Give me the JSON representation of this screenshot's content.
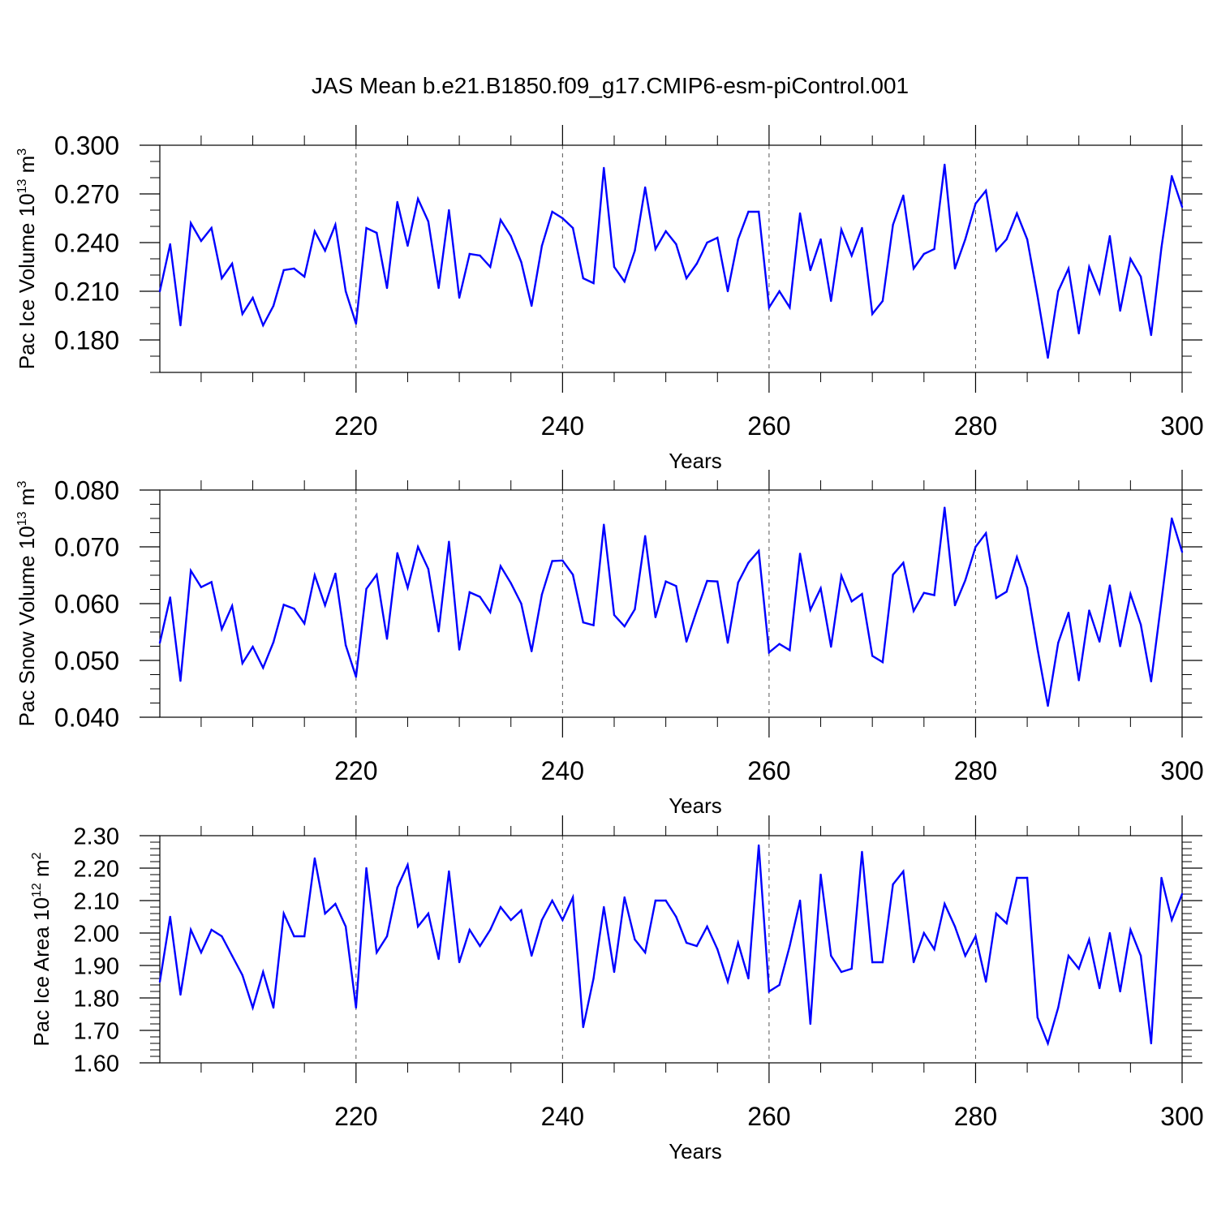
{
  "title": "JAS Mean b.e21.B1850.f09_g17.CMIP6-esm-piControl.001",
  "colors": {
    "line": "#0000ff",
    "axis": "#000000",
    "grid": "#555555",
    "background": "#ffffff"
  },
  "chart_data": [
    {
      "type": "line",
      "ylabel": "Pac Ice Volume",
      "ylabel_unit": "10",
      "ylabel_exp": "13",
      "ylabel_unit2": " m",
      "ylabel_exp2": "3",
      "xlabel": "Years",
      "xlim": [
        201,
        300
      ],
      "ylim": [
        0.16,
        0.3
      ],
      "xticks": [
        220,
        240,
        260,
        280,
        300
      ],
      "xtick_labels": [
        "220",
        "240",
        "260",
        "280",
        "300"
      ],
      "yticks": [
        0.18,
        0.21,
        0.24,
        0.27,
        0.3
      ],
      "ytick_labels": [
        "0.180",
        "0.210",
        "0.240",
        "0.270",
        "0.300"
      ],
      "yminor_step": 0.01,
      "grid_x": [
        220,
        240,
        260,
        280
      ],
      "x_start": 201,
      "values": [
        0.21,
        0.239,
        0.189,
        0.252,
        0.241,
        0.249,
        0.218,
        0.227,
        0.196,
        0.206,
        0.189,
        0.201,
        0.223,
        0.224,
        0.219,
        0.247,
        0.235,
        0.251,
        0.21,
        0.19,
        0.249,
        0.246,
        0.212,
        0.265,
        0.238,
        0.267,
        0.253,
        0.212,
        0.26,
        0.206,
        0.233,
        0.232,
        0.225,
        0.254,
        0.244,
        0.228,
        0.201,
        0.238,
        0.259,
        0.255,
        0.249,
        0.218,
        0.215,
        0.286,
        0.225,
        0.216,
        0.235,
        0.274,
        0.236,
        0.247,
        0.239,
        0.218,
        0.227,
        0.24,
        0.243,
        0.21,
        0.242,
        0.259,
        0.259,
        0.2,
        0.21,
        0.2,
        0.258,
        0.223,
        0.242,
        0.204,
        0.248,
        0.232,
        0.249,
        0.196,
        0.204,
        0.251,
        0.269,
        0.224,
        0.233,
        0.236,
        0.288,
        0.224,
        0.242,
        0.264,
        0.272,
        0.235,
        0.242,
        0.258,
        0.242,
        0.207,
        0.169,
        0.21,
        0.224,
        0.184,
        0.225,
        0.209,
        0.244,
        0.198,
        0.23,
        0.219,
        0.183,
        0.237,
        0.281,
        0.262
      ]
    },
    {
      "type": "line",
      "ylabel": "Pac Snow Volume",
      "ylabel_unit": "10",
      "ylabel_exp": "13",
      "ylabel_unit2": " m",
      "ylabel_exp2": "3",
      "xlabel": "Years",
      "xlim": [
        201,
        300
      ],
      "ylim": [
        0.04,
        0.08
      ],
      "xticks": [
        220,
        240,
        260,
        280,
        300
      ],
      "xtick_labels": [
        "220",
        "240",
        "260",
        "280",
        "300"
      ],
      "yticks": [
        0.04,
        0.05,
        0.06,
        0.07,
        0.08
      ],
      "ytick_labels": [
        "0.040",
        "0.050",
        "0.060",
        "0.070",
        "0.080"
      ],
      "yminor_step": 0.0025,
      "grid_x": [
        220,
        240,
        260,
        280
      ],
      "x_start": 201,
      "values": [
        0.0531,
        0.0611,
        0.0464,
        0.0658,
        0.0629,
        0.0638,
        0.0555,
        0.0596,
        0.0495,
        0.0524,
        0.0487,
        0.0532,
        0.0598,
        0.0591,
        0.0565,
        0.065,
        0.0597,
        0.0653,
        0.0527,
        0.0471,
        0.0626,
        0.0651,
        0.0538,
        0.0689,
        0.0628,
        0.07,
        0.0661,
        0.0551,
        0.0709,
        0.0519,
        0.062,
        0.0612,
        0.0585,
        0.0666,
        0.0636,
        0.06,
        0.0516,
        0.0616,
        0.0675,
        0.0676,
        0.0651,
        0.0567,
        0.0562,
        0.0739,
        0.058,
        0.056,
        0.059,
        0.0719,
        0.0576,
        0.0639,
        0.0631,
        0.0533,
        0.0588,
        0.064,
        0.0639,
        0.0531,
        0.0637,
        0.0672,
        0.0693,
        0.0514,
        0.0529,
        0.0518,
        0.0688,
        0.0589,
        0.0627,
        0.0524,
        0.0649,
        0.0604,
        0.0617,
        0.0508,
        0.0497,
        0.0651,
        0.0672,
        0.0587,
        0.0619,
        0.0615,
        0.0769,
        0.0597,
        0.0641,
        0.07,
        0.0724,
        0.061,
        0.0621,
        0.0682,
        0.0628,
        0.052,
        0.042,
        0.0531,
        0.0584,
        0.0465,
        0.0588,
        0.0533,
        0.0632,
        0.0525,
        0.0617,
        0.0563,
        0.0463,
        0.0605,
        0.075,
        0.0691
      ]
    },
    {
      "type": "line",
      "ylabel": "Pac Ice Area",
      "ylabel_unit": "10",
      "ylabel_exp": "12",
      "ylabel_unit2": " m",
      "ylabel_exp2": "2",
      "xlabel": "Years",
      "xlim": [
        201,
        300
      ],
      "ylim": [
        1.6,
        2.3
      ],
      "xticks": [
        220,
        240,
        260,
        280,
        300
      ],
      "xtick_labels": [
        "220",
        "240",
        "260",
        "280",
        "300"
      ],
      "yticks": [
        1.6,
        1.7,
        1.8,
        1.9,
        2.0,
        2.1,
        2.2,
        2.3
      ],
      "ytick_labels": [
        "1.60",
        "1.70",
        "1.80",
        "1.90",
        "2.00",
        "2.10",
        "2.20",
        "2.30"
      ],
      "yminor_step": 0.02,
      "grid_x": [
        220,
        240,
        260,
        280
      ],
      "x_start": 201,
      "values": [
        1.85,
        2.05,
        1.81,
        2.01,
        1.94,
        2.01,
        1.99,
        1.93,
        1.87,
        1.77,
        1.88,
        1.77,
        2.06,
        1.99,
        1.99,
        2.23,
        2.06,
        2.09,
        2.02,
        1.77,
        2.2,
        1.94,
        1.99,
        2.14,
        2.21,
        2.02,
        2.06,
        1.92,
        2.19,
        1.91,
        2.01,
        1.96,
        2.01,
        2.08,
        2.04,
        2.07,
        1.93,
        2.04,
        2.1,
        2.04,
        2.11,
        1.71,
        1.86,
        2.08,
        1.88,
        2.11,
        1.98,
        1.94,
        2.1,
        2.1,
        2.05,
        1.97,
        1.96,
        2.02,
        1.95,
        1.85,
        1.97,
        1.86,
        2.27,
        1.82,
        1.84,
        1.96,
        2.1,
        1.72,
        2.18,
        1.93,
        1.88,
        1.89,
        2.25,
        1.91,
        1.91,
        2.15,
        2.19,
        1.91,
        2.0,
        1.95,
        2.09,
        2.02,
        1.93,
        1.99,
        1.85,
        2.06,
        2.03,
        2.17,
        2.17,
        1.74,
        1.66,
        1.77,
        1.93,
        1.89,
        1.98,
        1.83,
        2.0,
        1.82,
        2.01,
        1.93,
        1.66,
        2.17,
        2.04,
        2.12
      ]
    }
  ]
}
